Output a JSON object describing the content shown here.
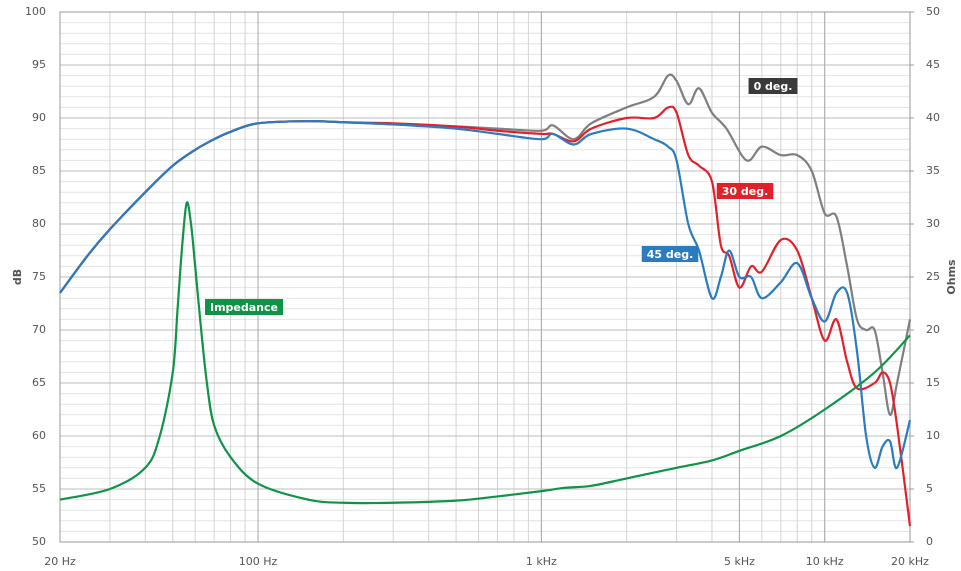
{
  "chart_data": {
    "type": "line",
    "xscale": "log",
    "grid": true,
    "ylabel": "dB",
    "y2label": "Ohms",
    "xlim": [
      20,
      20000
    ],
    "ylim": [
      50,
      100
    ],
    "y2lim": [
      0,
      50
    ],
    "xticks": [
      {
        "value": 20,
        "label": "20 Hz"
      },
      {
        "value": 100,
        "label": "100 Hz"
      },
      {
        "value": 1000,
        "label": "1 kHz"
      },
      {
        "value": 5000,
        "label": "5 kHz"
      },
      {
        "value": 10000,
        "label": "10 kHz"
      },
      {
        "value": 20000,
        "label": "20 kHz"
      }
    ],
    "yticks": [
      50,
      55,
      60,
      65,
      70,
      75,
      80,
      85,
      90,
      95,
      100
    ],
    "y2ticks": [
      0,
      5,
      10,
      15,
      20,
      25,
      30,
      35,
      40,
      45,
      50
    ],
    "series": [
      {
        "name": "0 deg.",
        "color": "#7f7f7f",
        "x": [
          20,
          25,
          30,
          40,
          50,
          60,
          70,
          80,
          100,
          150,
          200,
          300,
          500,
          700,
          1000,
          1100,
          1300,
          1500,
          2000,
          2500,
          2800,
          3000,
          3300,
          3600,
          4000,
          4500,
          5300,
          6000,
          7000,
          8000,
          9000,
          10000,
          11000,
          12000,
          13000,
          14000,
          15000,
          16000,
          17000,
          18000,
          20000
        ],
        "values": [
          73.5,
          77,
          79.5,
          83,
          85.5,
          87,
          88,
          88.7,
          89.5,
          89.7,
          89.6,
          89.4,
          89.2,
          89,
          88.8,
          89.3,
          88,
          89.5,
          91,
          92,
          94,
          93.5,
          91.3,
          92.8,
          90.5,
          89,
          86,
          87.3,
          86.5,
          86.5,
          85,
          81,
          80.7,
          76,
          71,
          70,
          70,
          66,
          62,
          65,
          71
        ]
      },
      {
        "name": "30 deg.",
        "color": "#e3202a",
        "x": [
          20,
          25,
          30,
          40,
          50,
          60,
          70,
          80,
          100,
          150,
          200,
          300,
          500,
          700,
          1000,
          1100,
          1300,
          1500,
          2000,
          2500,
          2800,
          3000,
          3300,
          3600,
          4000,
          4300,
          4600,
          5000,
          5500,
          6000,
          7000,
          8000,
          9000,
          10000,
          11000,
          12000,
          13000,
          15000,
          16000,
          17000,
          18000,
          20000
        ],
        "values": [
          73.5,
          77,
          79.5,
          83,
          85.5,
          87,
          88,
          88.7,
          89.5,
          89.7,
          89.6,
          89.5,
          89.2,
          88.8,
          88.5,
          88.5,
          87.8,
          89,
          90,
          90,
          91,
          90.5,
          86.5,
          85.5,
          84,
          78,
          77,
          74,
          76,
          75.5,
          78.5,
          77.5,
          73,
          69,
          71,
          67,
          64.5,
          65,
          66,
          65,
          61,
          51.5
        ]
      },
      {
        "name": "45 deg.",
        "color": "#2a7bbf",
        "x": [
          20,
          25,
          30,
          40,
          50,
          60,
          70,
          80,
          100,
          150,
          200,
          300,
          500,
          700,
          1000,
          1100,
          1300,
          1500,
          2000,
          2500,
          2800,
          3000,
          3300,
          3600,
          4000,
          4300,
          4600,
          5000,
          5500,
          6000,
          7000,
          8000,
          9000,
          10000,
          11000,
          12000,
          13000,
          14000,
          15000,
          16000,
          17000,
          18000,
          20000
        ],
        "values": [
          73.5,
          77,
          79.5,
          83,
          85.5,
          87,
          88,
          88.7,
          89.5,
          89.7,
          89.6,
          89.4,
          89,
          88.5,
          88,
          88.5,
          87.5,
          88.5,
          89,
          88,
          87.3,
          86,
          80,
          77.5,
          73,
          75,
          77.5,
          75,
          75,
          73,
          74.5,
          76.3,
          73,
          70.8,
          73.5,
          73.5,
          68,
          60,
          57,
          59,
          59.5,
          57,
          61.5
        ]
      },
      {
        "name": "Impedance",
        "color": "#0f9447",
        "axis": "y2",
        "x": [
          20,
          30,
          40,
          45,
          50,
          52,
          54,
          56,
          58,
          60,
          63,
          66,
          70,
          80,
          100,
          150,
          200,
          300,
          500,
          700,
          1000,
          1200,
          1500,
          2000,
          3000,
          4000,
          5000,
          7000,
          10000,
          15000,
          20000
        ],
        "values": [
          4,
          5,
          7,
          10,
          16,
          22,
          28,
          32,
          30,
          26,
          20,
          15,
          11,
          8,
          5.5,
          4,
          3.7,
          3.7,
          3.9,
          4.3,
          4.8,
          5.1,
          5.3,
          6,
          7,
          7.7,
          8.6,
          10,
          12.5,
          16,
          19.5
        ]
      }
    ]
  }
}
